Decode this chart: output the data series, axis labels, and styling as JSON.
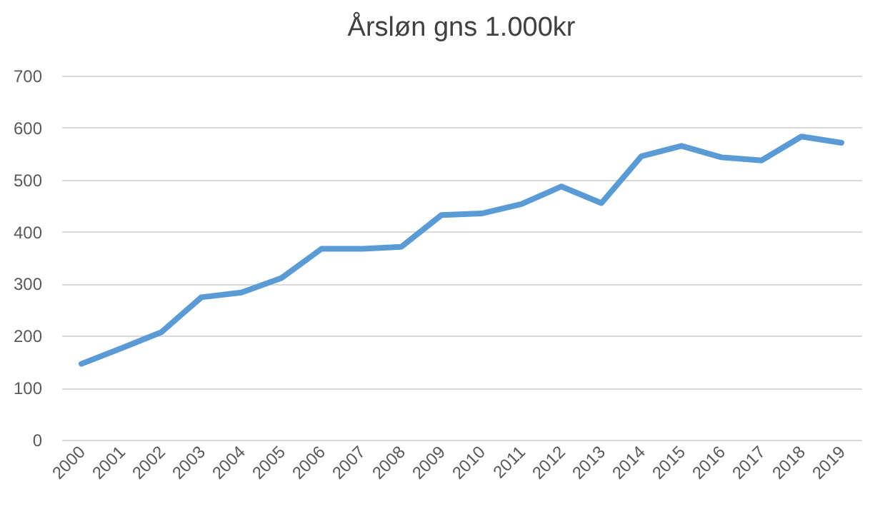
{
  "chart_data": {
    "type": "line",
    "title": "Årsløn gns 1.000kr",
    "categories": [
      "2000",
      "2001",
      "2002",
      "2003",
      "2004",
      "2005",
      "2006",
      "2007",
      "2008",
      "2009",
      "2010",
      "2011",
      "2012",
      "2013",
      "2014",
      "2015",
      "2016",
      "2017",
      "2018",
      "2019"
    ],
    "series": [
      {
        "color": "#5b9bd5",
        "values": [
          146,
          176,
          207,
          274,
          283,
          311,
          367,
          367,
          371,
          432,
          435,
          453,
          487,
          455,
          545,
          565,
          543,
          537,
          583,
          571
        ]
      }
    ],
    "ylim": [
      0,
      700
    ],
    "yticks": [
      0,
      100,
      200,
      300,
      400,
      500,
      600,
      700
    ],
    "grid": "y",
    "marker": "none",
    "line_style": "solid"
  }
}
